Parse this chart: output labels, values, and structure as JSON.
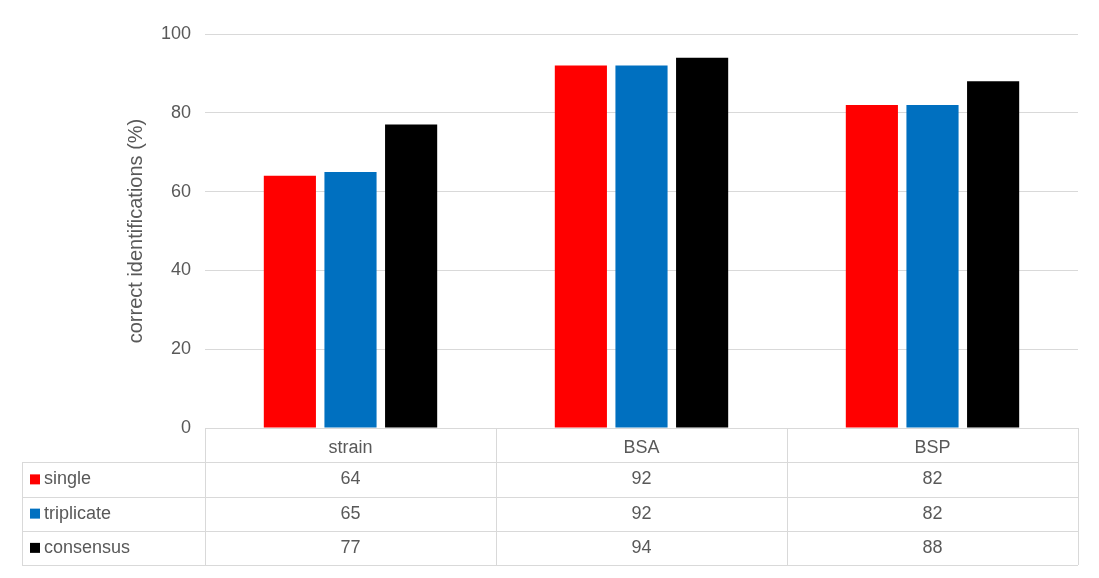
{
  "chart_data": {
    "type": "bar",
    "ylabel": "correct identifications (%)",
    "categories": [
      "strain",
      "BSA",
      "BSP"
    ],
    "series": [
      {
        "name": "single",
        "color": "#ff0000",
        "values": [
          64,
          92,
          82
        ]
      },
      {
        "name": "triplicate",
        "color": "#0070c0",
        "values": [
          65,
          92,
          82
        ]
      },
      {
        "name": "consensus",
        "color": "#000000",
        "values": [
          77,
          94,
          88
        ]
      }
    ],
    "ylim": [
      0,
      100
    ],
    "yticks": [
      0,
      20,
      40,
      60,
      80,
      100
    ],
    "grid": "y",
    "legend": "bottom",
    "data_labels": true
  }
}
